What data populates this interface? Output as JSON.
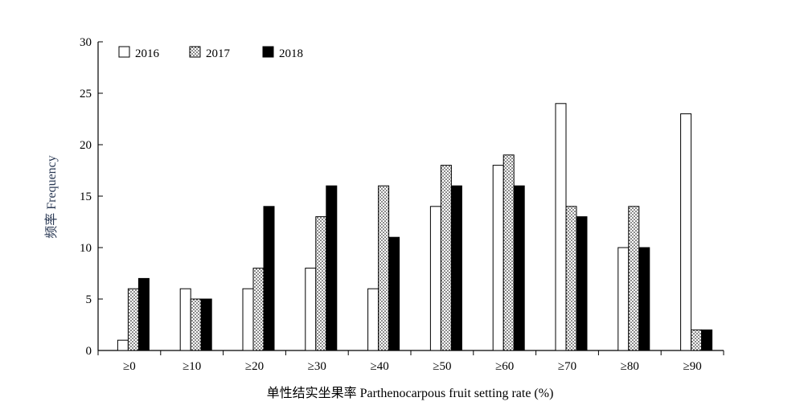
{
  "chart_data": {
    "type": "bar",
    "xlabel": "单性结实坐果率 Parthenocarpous fruit setting rate (%)",
    "ylabel": "频率 Frequency",
    "ylim": [
      0,
      30
    ],
    "yticks": [
      0,
      5,
      10,
      15,
      20,
      25,
      30
    ],
    "grid": false,
    "legend_position": "top-left",
    "categories": [
      "≥0",
      "≥10",
      "≥20",
      "≥30",
      "≥40",
      "≥50",
      "≥60",
      "≥70",
      "≥80",
      "≥90"
    ],
    "series": [
      {
        "name": "2016",
        "fill": "white",
        "values": [
          1,
          6,
          6,
          8,
          6,
          14,
          18,
          24,
          10,
          23
        ]
      },
      {
        "name": "2017",
        "fill": "dotted",
        "values": [
          6,
          5,
          8,
          13,
          16,
          18,
          19,
          14,
          14,
          2
        ]
      },
      {
        "name": "2018",
        "fill": "black",
        "values": [
          7,
          5,
          14,
          16,
          11,
          16,
          16,
          13,
          10,
          2
        ]
      }
    ]
  },
  "colors": {
    "axis": "#000000",
    "ylabel": "#2b3a55",
    "bar_outline": "#000000",
    "solid": "#000000"
  }
}
